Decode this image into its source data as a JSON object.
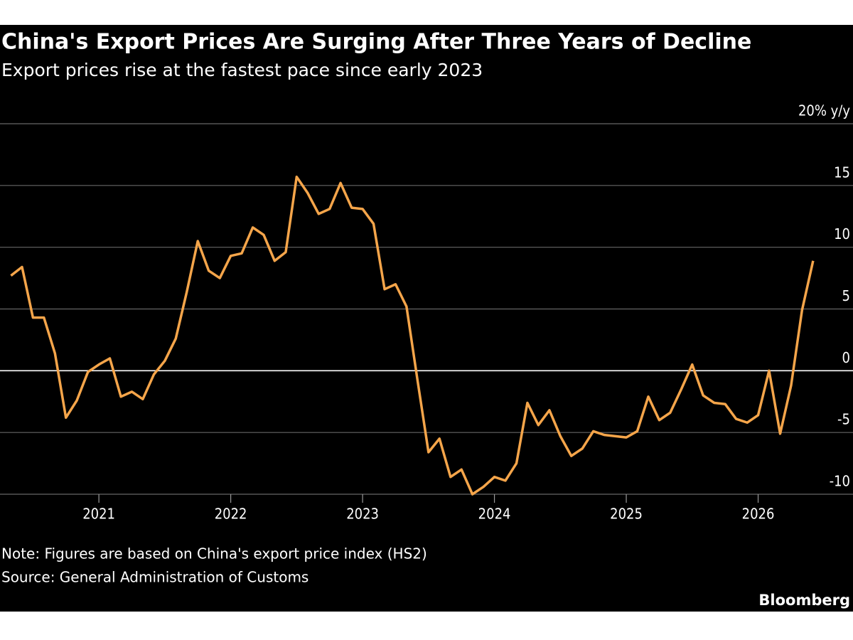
{
  "chart_data": {
    "type": "line",
    "title": "China's Export Prices Are Surging After Three Years of Decline",
    "subtitle": "Export prices rise at the fastest pace since early 2023",
    "note": "Note: Figures are based on China's export price index (HS2)",
    "source": "Source: General Administration of Customs",
    "brand": "Bloomberg",
    "x": [
      2020.333,
      2020.417,
      2020.5,
      2020.583,
      2020.667,
      2020.75,
      2020.833,
      2020.917,
      2021.0,
      2021.083,
      2021.167,
      2021.25,
      2021.333,
      2021.417,
      2021.5,
      2021.583,
      2021.667,
      2021.75,
      2021.833,
      2021.917,
      2022.0,
      2022.083,
      2022.167,
      2022.25,
      2022.333,
      2022.417,
      2022.5,
      2022.583,
      2022.667,
      2022.75,
      2022.833,
      2022.917,
      2023.0,
      2023.083,
      2023.167,
      2023.25,
      2023.333,
      2023.417,
      2023.5,
      2023.583,
      2023.667,
      2023.75,
      2023.833,
      2023.917,
      2024.0,
      2024.083,
      2024.167,
      2024.25,
      2024.333,
      2024.417,
      2024.5,
      2024.583,
      2024.667,
      2024.75,
      2024.833,
      2024.917,
      2025.0,
      2025.083,
      2025.167,
      2025.25,
      2025.333,
      2025.417,
      2025.5,
      2025.583,
      2025.667,
      2025.75,
      2025.833,
      2025.917,
      2026.0,
      2026.083,
      2026.167,
      2026.25,
      2026.333,
      2026.417
    ],
    "series": [
      {
        "color": "#f5a54a",
        "values": [
          7.7,
          8.4,
          4.3,
          4.3,
          1.4,
          -3.8,
          -2.4,
          -0.1,
          0.5,
          1.0,
          -2.1,
          -1.7,
          -2.3,
          -0.3,
          0.8,
          2.6,
          6.4,
          10.5,
          8.1,
          7.5,
          9.3,
          9.5,
          11.6,
          11.0,
          8.9,
          9.6,
          15.7,
          14.4,
          12.7,
          13.1,
          15.2,
          13.2,
          13.1,
          11.9,
          6.6,
          7.0,
          5.2,
          -0.8,
          -6.6,
          -5.5,
          -8.6,
          -8.0,
          -10.0,
          -9.4,
          -8.6,
          -8.9,
          -7.5,
          -2.6,
          -4.4,
          -3.2,
          -5.3,
          -6.9,
          -6.3,
          -4.9,
          -5.2,
          -5.3,
          -5.4,
          -4.9,
          -2.1,
          -4.0,
          -3.4,
          -1.5,
          0.5,
          -2.0,
          -2.6,
          -2.7,
          -3.9,
          -4.2,
          -3.6,
          0.0,
          -5.1,
          -1.2,
          4.9,
          8.9
        ]
      }
    ],
    "xlim": [
      2020.25,
      2026.45
    ],
    "xticks": [
      2021,
      2022,
      2023,
      2024,
      2025,
      2026
    ],
    "ylim": [
      -10,
      20
    ],
    "yticks": [
      {
        "value": 20,
        "label": "20% y/y"
      },
      15,
      10,
      5,
      0,
      -5,
      -10
    ],
    "grid": true
  }
}
